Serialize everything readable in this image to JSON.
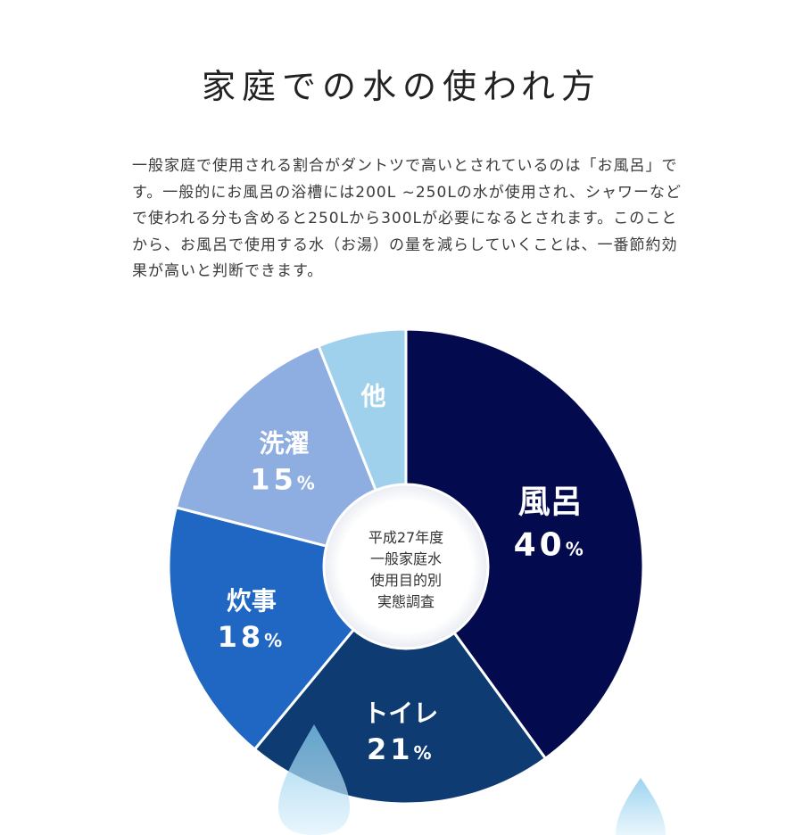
{
  "title": "家庭での水の使われ方",
  "description": "一般家庭で使用される割合がダントツで高いとされているのは「お風呂」です。一般的にお風呂の浴槽には200L ~250Lの水が使用され、シャワーなどで使われる分も含めると250Lから300Lが必要になるとされます。このことから、お風呂で使用する水（お湯）の量を減らしていくことは、一番節約効果が高いと判断できます。",
  "chart_data": {
    "type": "pie",
    "categories": [
      "風呂",
      "トイレ",
      "炊事",
      "洗濯",
      "他"
    ],
    "values": [
      40,
      21,
      18,
      15,
      6
    ],
    "unit": "%",
    "colors": [
      "#040a4e",
      "#0d3b72",
      "#1f67c2",
      "#8eaee2",
      "#9fd1ec"
    ],
    "center_label": [
      "平成27年度",
      "一般家庭水",
      "使用目的別",
      "実態調査"
    ]
  }
}
